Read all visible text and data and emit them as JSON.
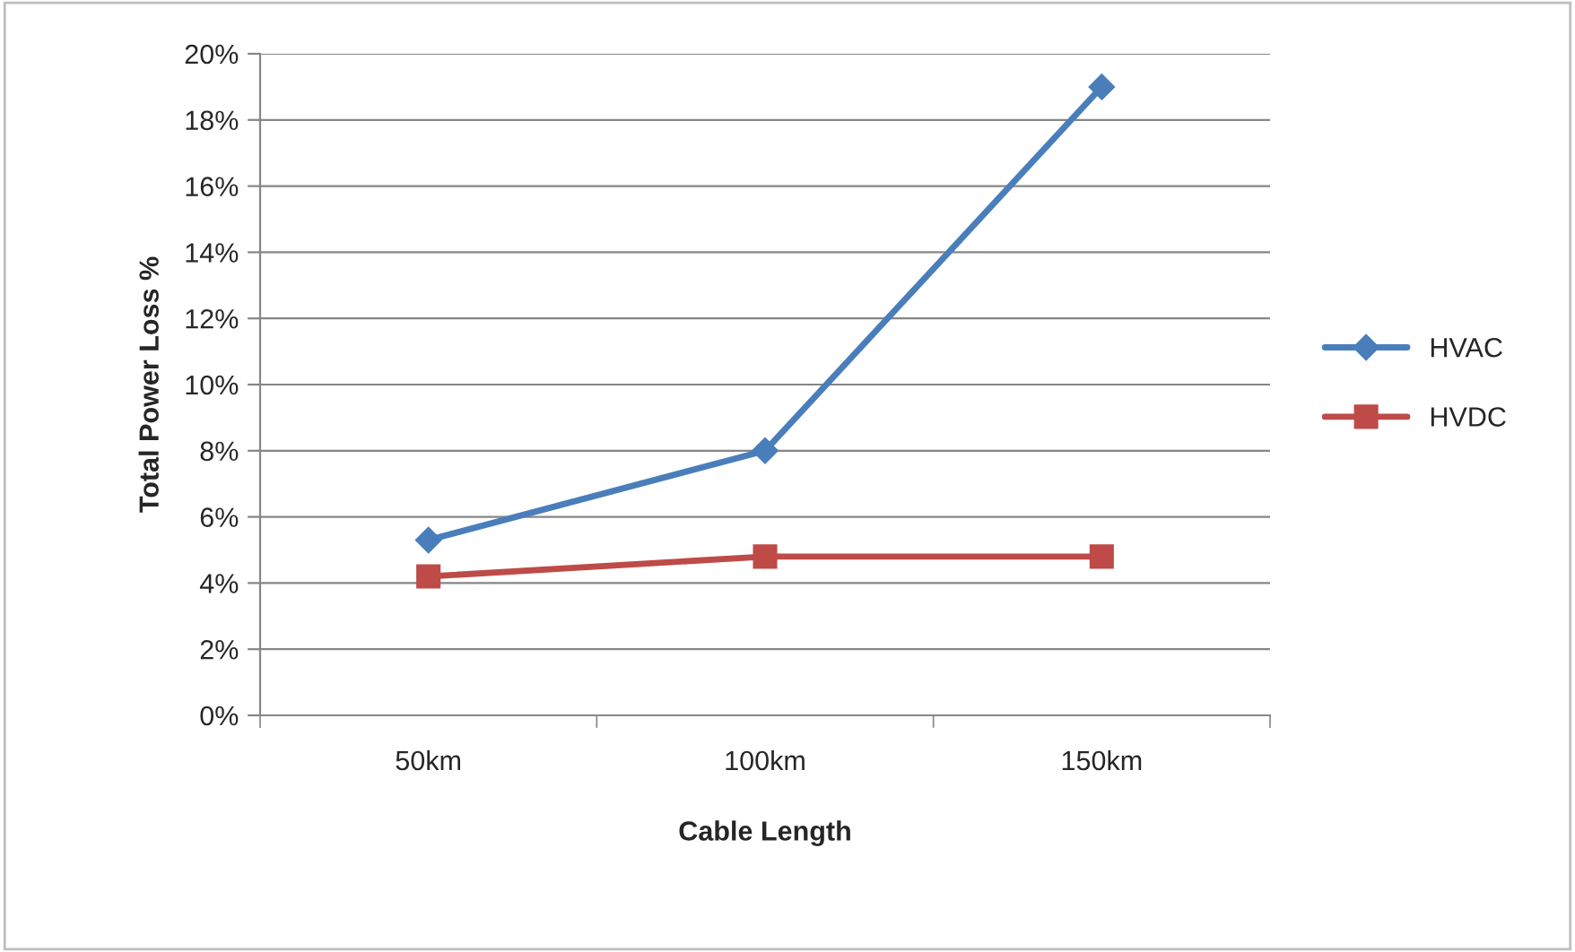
{
  "chart_data": {
    "type": "line",
    "xlabel": "Cable Length",
    "ylabel": "Total Power Loss %",
    "categories": [
      "50km",
      "100km",
      "150km"
    ],
    "series": [
      {
        "name": "HVAC",
        "color": "#4a7ebb",
        "marker": "diamond",
        "values": [
          5.3,
          8.0,
          19.0
        ]
      },
      {
        "name": "HVDC",
        "color": "#be4b48",
        "marker": "square",
        "values": [
          4.2,
          4.8,
          4.8
        ]
      }
    ],
    "ylim": [
      0,
      20
    ],
    "yticks": [
      {
        "value": 0,
        "label": "0%"
      },
      {
        "value": 2,
        "label": "2%"
      },
      {
        "value": 4,
        "label": "4%"
      },
      {
        "value": 6,
        "label": "6%"
      },
      {
        "value": 8,
        "label": "8%"
      },
      {
        "value": 10,
        "label": "10%"
      },
      {
        "value": 12,
        "label": "12%"
      },
      {
        "value": 14,
        "label": "14%"
      },
      {
        "value": 16,
        "label": "16%"
      },
      {
        "value": 18,
        "label": "18%"
      },
      {
        "value": 20,
        "label": "20%"
      }
    ],
    "grid": "y",
    "legend": "right",
    "line_style": "solid"
  }
}
